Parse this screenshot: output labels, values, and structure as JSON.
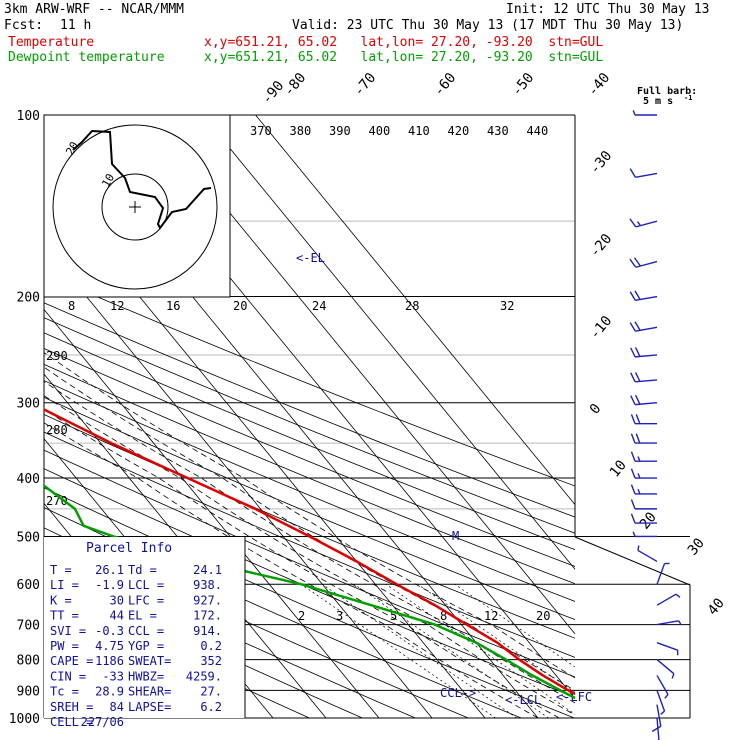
{
  "header": {
    "model": "3km ARW-WRF -- NCAR/MMM",
    "init": "Init: 12 UTC Thu 30 May 13",
    "fcst_label": "Fcst:",
    "fcst_value": "11 h",
    "valid": "Valid: 23 UTC Thu 30 May 13 (17 MDT Thu 30 May 13)",
    "line1_label": "Temperature",
    "line1_info": "x,y=651.21, 65.02   lat,lon= 27.20, -93.20  stn=GUL",
    "line2_label": "Dewpoint temperature",
    "line2_info": "x,y=651.21, 65.02   lat,lon= 27.20, -93.20  stn=GUL"
  },
  "barb_key": {
    "title": "Full barb:",
    "value": "5 m s",
    "exp": "-1"
  },
  "colors": {
    "temperature": "#e00000",
    "dewpoint": "#00a000",
    "barbs": "#2020c0",
    "text_blue": "#1010a0"
  },
  "chart_data": {
    "type": "line",
    "title": "",
    "pressure_levels": [
      100,
      200,
      300,
      400,
      500,
      600,
      700,
      800,
      900,
      1000
    ],
    "skewed_isotherm_labels": [
      "-90",
      "-80",
      "-70",
      "-60",
      "-50",
      "-40",
      "-30",
      "-20",
      "-10",
      "0",
      "10",
      "20",
      "30",
      "40"
    ],
    "mixing_ratio_labels": [
      "2",
      "3",
      "5",
      "8",
      "12",
      "20"
    ],
    "dry_adiabat_labels": [
      "290",
      "280",
      "270"
    ],
    "annotations": {
      "el": "<-EL",
      "ccl": "CCL->",
      "lcl": "<-LCL",
      "lfc": "<-LFC",
      "marker": "M"
    },
    "series": [
      {
        "name": "Temperature",
        "p": [
          100,
          120,
          150,
          180,
          200,
          250,
          300,
          350,
          400,
          450,
          500,
          550,
          600,
          650,
          700,
          750,
          800,
          850,
          900,
          925,
          950,
          975,
          1000
        ],
        "t": [
          -72,
          -68,
          -66,
          -63,
          -59,
          -48,
          -37,
          -28,
          -19,
          -11,
          -5,
          0,
          4,
          8,
          11,
          14,
          15.5,
          17.5,
          20,
          21.5,
          23,
          24.5,
          26.1
        ]
      },
      {
        "name": "Dewpoint temperature",
        "p": [
          100,
          130,
          160,
          180,
          200,
          225,
          250,
          300,
          350,
          400,
          450,
          480,
          500,
          550,
          600,
          650,
          700,
          750,
          800,
          850,
          900,
          925,
          950,
          975,
          1000
        ],
        "t": [
          -82,
          -80,
          -79,
          -80,
          -81,
          -76,
          -66,
          -60,
          -52,
          -48,
          -45,
          -46,
          -42,
          -29,
          -14,
          -4,
          5,
          10,
          13,
          15.5,
          18.5,
          20,
          21.5,
          22.5,
          24.1
        ]
      }
    ],
    "wind_barbs": [
      {
        "p": 100,
        "speed": 5,
        "dir": 270
      },
      {
        "p": 125,
        "speed": 10,
        "dir": 260
      },
      {
        "p": 150,
        "speed": 15,
        "dir": 255
      },
      {
        "p": 175,
        "speed": 20,
        "dir": 255
      },
      {
        "p": 200,
        "speed": 20,
        "dir": 260
      },
      {
        "p": 225,
        "speed": 20,
        "dir": 260
      },
      {
        "p": 250,
        "speed": 20,
        "dir": 265
      },
      {
        "p": 275,
        "speed": 20,
        "dir": 265
      },
      {
        "p": 300,
        "speed": 20,
        "dir": 265
      },
      {
        "p": 325,
        "speed": 20,
        "dir": 270
      },
      {
        "p": 350,
        "speed": 20,
        "dir": 270
      },
      {
        "p": 375,
        "speed": 15,
        "dir": 270
      },
      {
        "p": 400,
        "speed": 15,
        "dir": 270
      },
      {
        "p": 425,
        "speed": 15,
        "dir": 270
      },
      {
        "p": 450,
        "speed": 10,
        "dir": 270
      },
      {
        "p": 475,
        "speed": 10,
        "dir": 270
      },
      {
        "p": 500,
        "speed": 5,
        "dir": 270
      },
      {
        "p": 550,
        "speed": 5,
        "dir": 300
      },
      {
        "p": 600,
        "speed": 5,
        "dir": 20
      },
      {
        "p": 650,
        "speed": 5,
        "dir": 60
      },
      {
        "p": 700,
        "speed": 5,
        "dir": 80
      },
      {
        "p": 750,
        "speed": 5,
        "dir": 110
      },
      {
        "p": 800,
        "speed": 5,
        "dir": 130
      },
      {
        "p": 850,
        "speed": 5,
        "dir": 150
      },
      {
        "p": 900,
        "speed": 5,
        "dir": 160
      },
      {
        "p": 950,
        "speed": 10,
        "dir": 170
      },
      {
        "p": 1000,
        "speed": 10,
        "dir": 175
      }
    ],
    "hodograph": {
      "ring_labels": [
        "10",
        "20"
      ],
      "speed_labels": [
        "kts",
        "8",
        "12",
        "16",
        "20",
        "24",
        "28",
        "32"
      ],
      "theta_e_labels": [
        "370",
        "380",
        "390",
        "400",
        "410",
        "420",
        "430",
        "440"
      ]
    }
  },
  "parcel_info": {
    "title": "Parcel Info",
    "rows": [
      [
        "T  =",
        "26.1",
        "Td =",
        "24.1"
      ],
      [
        "LI =",
        "-1.9",
        "LCL =",
        "938."
      ],
      [
        "K  =",
        "30",
        "LFC =",
        "927."
      ],
      [
        "TT =",
        "44",
        "EL  =",
        "172."
      ],
      [
        "SVI =",
        "-0.3",
        "CCL =",
        "914."
      ],
      [
        "PW =",
        "4.75",
        "YGP =",
        "0.2"
      ],
      [
        "CAPE =",
        "1186",
        "SWEAT=",
        "352"
      ],
      [
        "CIN =",
        "-33",
        "HWBZ=",
        "4259."
      ],
      [
        "Tc =",
        "28.9",
        "SHEAR=",
        "27."
      ],
      [
        "SREH =",
        "84",
        "LAPSE=",
        "6.2"
      ],
      [
        "CELL =",
        "227/06",
        "",
        ""
      ]
    ]
  }
}
